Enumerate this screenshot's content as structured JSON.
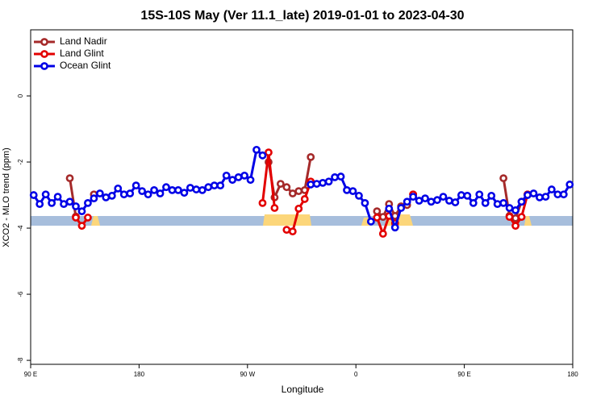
{
  "chart_data": {
    "type": "line",
    "title": "15S-10S May (Ver 11.1_late)   2019-01-01 to 2023-04-30",
    "x_label": "Longitude",
    "y_label": "XCO2 - MLO trend (ppm)",
    "xlim": [
      90,
      540
    ],
    "xticks": [
      {
        "value": 90,
        "label": "90 E"
      },
      {
        "value": 180,
        "label": "180"
      },
      {
        "value": 270,
        "label": "90 W"
      },
      {
        "value": 360,
        "label": "0"
      },
      {
        "value": 450,
        "label": "90 E"
      },
      {
        "value": 540,
        "label": "180"
      }
    ],
    "ylim": [
      -8.12,
      2.0
    ],
    "yticks": [
      0,
      -2,
      -4,
      -6,
      -8
    ],
    "legend": "top-left",
    "x": [
      92.5,
      97.5,
      102.5,
      107.5,
      112.5,
      117.5,
      122.5,
      127.5,
      132.5,
      137.5,
      142.5,
      147.5,
      152.5,
      157.5,
      162.5,
      167.5,
      172.5,
      177.5,
      182.5,
      187.5,
      192.5,
      197.5,
      202.5,
      207.5,
      212.5,
      217.5,
      222.5,
      227.5,
      232.5,
      237.5,
      242.5,
      247.5,
      252.5,
      257.5,
      262.5,
      267.5,
      272.5,
      277.5,
      282.5,
      287.5,
      292.5,
      297.5,
      302.5,
      307.5,
      312.5,
      317.5,
      322.5,
      327.5,
      332.5,
      337.5,
      342.5,
      347.5,
      352.5,
      357.5,
      362.5,
      367.5,
      372.5,
      377.5,
      382.5,
      387.5,
      392.5,
      397.5,
      402.5,
      407.5,
      412.5,
      417.5,
      422.5,
      427.5,
      432.5,
      437.5,
      442.5,
      447.5,
      452.5,
      457.5,
      462.5,
      467.5,
      472.5,
      477.5,
      482.5,
      487.5,
      492.5,
      497.5,
      502.5,
      507.5,
      512.5,
      517.5,
      522.5,
      527.5,
      532.5,
      537.5
    ],
    "series": [
      {
        "name": "Land Nadir",
        "color": "#a52a2a",
        "values": [
          null,
          null,
          null,
          null,
          null,
          null,
          -2.49,
          -3.65,
          null,
          null,
          -2.98,
          null,
          null,
          null,
          null,
          null,
          null,
          null,
          null,
          null,
          null,
          null,
          null,
          null,
          null,
          null,
          null,
          null,
          null,
          null,
          null,
          null,
          null,
          null,
          null,
          null,
          null,
          null,
          null,
          -2.0,
          -3.07,
          -2.66,
          -2.76,
          -2.95,
          -2.88,
          -2.85,
          -1.85,
          null,
          null,
          null,
          null,
          null,
          null,
          null,
          null,
          null,
          null,
          -3.49,
          -3.66,
          -3.27,
          -3.63,
          -3.34,
          -3.3,
          -2.98,
          null,
          null,
          null,
          null,
          null,
          null,
          null,
          null,
          null,
          null,
          null,
          null,
          null,
          null,
          -2.49,
          -3.63,
          -3.7,
          -3.2,
          -2.98,
          null,
          null,
          null,
          null,
          null,
          null,
          null
        ]
      },
      {
        "name": "Land Glint",
        "color": "#e30000",
        "values": [
          null,
          null,
          null,
          null,
          null,
          null,
          null,
          -3.68,
          -3.93,
          -3.68,
          null,
          null,
          null,
          null,
          null,
          null,
          null,
          null,
          null,
          null,
          null,
          null,
          null,
          null,
          null,
          null,
          null,
          null,
          null,
          null,
          null,
          null,
          null,
          null,
          null,
          null,
          null,
          null,
          -3.24,
          -1.71,
          -3.39,
          null,
          -4.05,
          -4.1,
          -3.41,
          -3.12,
          -2.59,
          null,
          null,
          null,
          null,
          null,
          null,
          null,
          null,
          null,
          null,
          -3.68,
          -4.17,
          -3.63,
          -3.85,
          null,
          null,
          -2.98,
          null,
          null,
          null,
          null,
          null,
          null,
          null,
          null,
          null,
          null,
          null,
          null,
          null,
          null,
          null,
          -3.66,
          -3.93,
          -3.66,
          -2.98,
          null,
          null,
          null,
          null,
          null,
          null,
          null
        ]
      },
      {
        "name": "Ocean Glint",
        "color": "#0000e6",
        "values": [
          -3.0,
          -3.27,
          -2.98,
          -3.24,
          -3.05,
          -3.27,
          -3.2,
          -3.34,
          -3.49,
          -3.24,
          -3.1,
          -2.95,
          -3.07,
          -3.02,
          -2.8,
          -2.98,
          -2.95,
          -2.71,
          -2.88,
          -2.98,
          -2.85,
          -2.95,
          -2.76,
          -2.85,
          -2.85,
          -2.93,
          -2.78,
          -2.83,
          -2.85,
          -2.76,
          -2.71,
          -2.71,
          -2.41,
          -2.54,
          -2.46,
          -2.41,
          -2.54,
          -1.63,
          -1.8,
          null,
          null,
          null,
          null,
          null,
          null,
          null,
          -2.68,
          -2.66,
          -2.63,
          -2.59,
          -2.46,
          -2.44,
          -2.85,
          -2.88,
          -3.02,
          -3.24,
          -3.8,
          null,
          null,
          -3.41,
          -3.98,
          -3.39,
          -3.2,
          -3.05,
          -3.17,
          -3.1,
          -3.2,
          -3.15,
          -3.05,
          -3.17,
          -3.22,
          -3.0,
          -3.02,
          -3.24,
          -2.98,
          -3.24,
          -3.02,
          -3.27,
          -3.24,
          -3.39,
          -3.46,
          -3.2,
          -3.0,
          -2.95,
          -3.07,
          -3.05,
          -2.83,
          -2.98,
          -2.98,
          -2.68
        ]
      }
    ]
  }
}
